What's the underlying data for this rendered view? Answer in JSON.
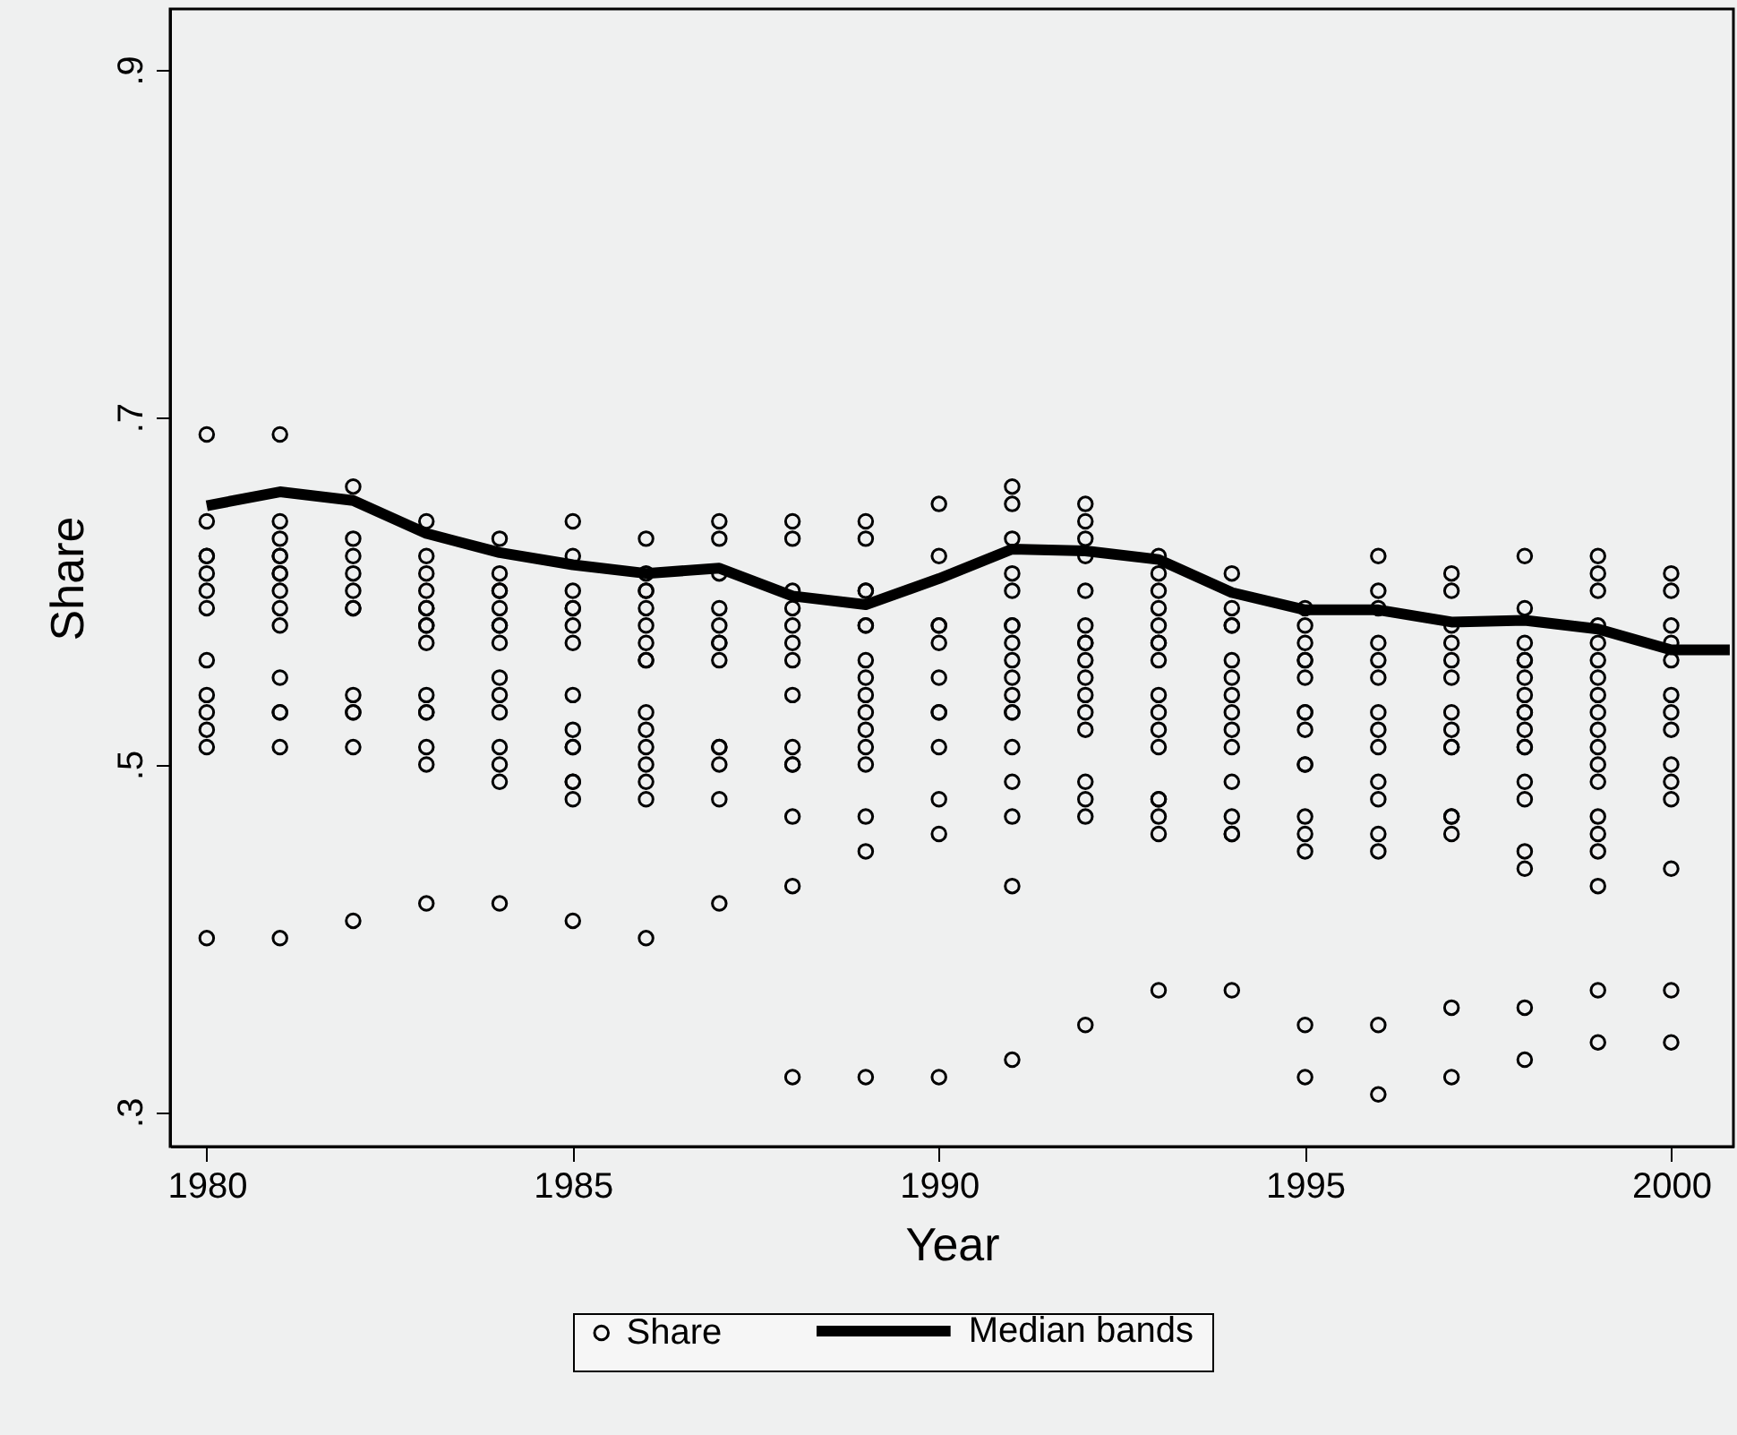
{
  "chart_data": {
    "type": "scatter",
    "xlabel": "Year",
    "ylabel": "Share",
    "xlim": [
      1979.5,
      2000.85
    ],
    "ylim": [
      0.28,
      0.935
    ],
    "xticks": [
      1980,
      1985,
      1990,
      1995,
      2000
    ],
    "yticks": [
      {
        "value": 0.3,
        "label": ".3"
      },
      {
        "value": 0.5,
        "label": ".5"
      },
      {
        "value": 0.7,
        "label": ".7"
      },
      {
        "value": 0.9,
        "label": ".9"
      }
    ],
    "legend": "bottom",
    "series": [
      {
        "name": "Share",
        "marker": "circle",
        "color": "#000000",
        "x": [
          1980,
          1980,
          1980,
          1980,
          1980,
          1980,
          1980,
          1980,
          1980,
          1980,
          1980,
          1980,
          1980,
          1981,
          1981,
          1981,
          1981,
          1981,
          1981,
          1981,
          1981,
          1981,
          1981,
          1981,
          1981,
          1981,
          1981,
          1981,
          1982,
          1982,
          1982,
          1982,
          1982,
          1982,
          1982,
          1982,
          1982,
          1982,
          1982,
          1982,
          1983,
          1983,
          1983,
          1983,
          1983,
          1983,
          1983,
          1983,
          1983,
          1983,
          1983,
          1983,
          1983,
          1983,
          1983,
          1984,
          1984,
          1984,
          1984,
          1984,
          1984,
          1984,
          1984,
          1984,
          1984,
          1984,
          1984,
          1984,
          1984,
          1984,
          1985,
          1985,
          1985,
          1985,
          1985,
          1985,
          1985,
          1985,
          1985,
          1985,
          1985,
          1985,
          1985,
          1985,
          1985,
          1986,
          1986,
          1986,
          1986,
          1986,
          1986,
          1986,
          1986,
          1986,
          1986,
          1986,
          1986,
          1986,
          1986,
          1986,
          1986,
          1987,
          1987,
          1987,
          1987,
          1987,
          1987,
          1987,
          1987,
          1987,
          1987,
          1987,
          1987,
          1987,
          1988,
          1988,
          1988,
          1988,
          1988,
          1988,
          1988,
          1988,
          1988,
          1988,
          1988,
          1988,
          1988,
          1988,
          1989,
          1989,
          1989,
          1989,
          1989,
          1989,
          1989,
          1989,
          1989,
          1989,
          1989,
          1989,
          1989,
          1989,
          1989,
          1989,
          1990,
          1990,
          1990,
          1990,
          1990,
          1990,
          1990,
          1990,
          1990,
          1990,
          1990,
          1990,
          1991,
          1991,
          1991,
          1991,
          1991,
          1991,
          1991,
          1991,
          1991,
          1991,
          1991,
          1991,
          1991,
          1991,
          1991,
          1991,
          1991,
          1991,
          1992,
          1992,
          1992,
          1992,
          1992,
          1992,
          1992,
          1992,
          1992,
          1992,
          1992,
          1992,
          1992,
          1992,
          1992,
          1992,
          1992,
          1993,
          1993,
          1993,
          1993,
          1993,
          1993,
          1993,
          1993,
          1993,
          1993,
          1993,
          1993,
          1993,
          1993,
          1993,
          1993,
          1993,
          1994,
          1994,
          1994,
          1994,
          1994,
          1994,
          1994,
          1994,
          1994,
          1994,
          1994,
          1994,
          1994,
          1994,
          1994,
          1995,
          1995,
          1995,
          1995,
          1995,
          1995,
          1995,
          1995,
          1995,
          1995,
          1995,
          1995,
          1995,
          1995,
          1995,
          1995,
          1996,
          1996,
          1996,
          1996,
          1996,
          1996,
          1996,
          1996,
          1996,
          1996,
          1996,
          1996,
          1996,
          1996,
          1996,
          1997,
          1997,
          1997,
          1997,
          1997,
          1997,
          1997,
          1997,
          1997,
          1997,
          1997,
          1997,
          1997,
          1997,
          1997,
          1998,
          1998,
          1998,
          1998,
          1998,
          1998,
          1998,
          1998,
          1998,
          1998,
          1998,
          1998,
          1998,
          1998,
          1998,
          1998,
          1998,
          1998,
          1999,
          1999,
          1999,
          1999,
          1999,
          1999,
          1999,
          1999,
          1999,
          1999,
          1999,
          1999,
          1999,
          1999,
          1999,
          1999,
          1999,
          1999,
          1999,
          2000,
          2000,
          2000,
          2000,
          2000,
          2000,
          2000,
          2000,
          2000,
          2000,
          2000,
          2000,
          2000,
          2000
        ],
        "values": [
          0.69,
          0.64,
          0.62,
          0.62,
          0.61,
          0.6,
          0.59,
          0.56,
          0.54,
          0.53,
          0.52,
          0.51,
          0.4,
          0.69,
          0.64,
          0.63,
          0.62,
          0.62,
          0.61,
          0.61,
          0.6,
          0.59,
          0.58,
          0.55,
          0.53,
          0.53,
          0.51,
          0.4,
          0.66,
          0.63,
          0.62,
          0.61,
          0.6,
          0.59,
          0.59,
          0.54,
          0.53,
          0.53,
          0.51,
          0.41,
          0.64,
          0.62,
          0.61,
          0.6,
          0.59,
          0.59,
          0.58,
          0.58,
          0.57,
          0.54,
          0.53,
          0.53,
          0.51,
          0.5,
          0.42,
          0.63,
          0.61,
          0.6,
          0.6,
          0.59,
          0.58,
          0.58,
          0.57,
          0.55,
          0.54,
          0.53,
          0.51,
          0.5,
          0.49,
          0.42,
          0.64,
          0.62,
          0.6,
          0.59,
          0.59,
          0.58,
          0.57,
          0.54,
          0.52,
          0.51,
          0.51,
          0.49,
          0.49,
          0.48,
          0.41,
          0.63,
          0.61,
          0.6,
          0.6,
          0.59,
          0.58,
          0.57,
          0.56,
          0.56,
          0.53,
          0.52,
          0.51,
          0.5,
          0.49,
          0.48,
          0.4,
          0.64,
          0.63,
          0.61,
          0.59,
          0.58,
          0.57,
          0.57,
          0.56,
          0.51,
          0.51,
          0.5,
          0.48,
          0.42,
          0.64,
          0.63,
          0.6,
          0.59,
          0.58,
          0.57,
          0.56,
          0.54,
          0.51,
          0.5,
          0.5,
          0.47,
          0.43,
          0.32,
          0.64,
          0.63,
          0.6,
          0.6,
          0.58,
          0.58,
          0.56,
          0.55,
          0.54,
          0.53,
          0.52,
          0.51,
          0.5,
          0.47,
          0.45,
          0.32,
          0.65,
          0.62,
          0.58,
          0.58,
          0.57,
          0.55,
          0.53,
          0.53,
          0.51,
          0.48,
          0.46,
          0.32,
          0.66,
          0.65,
          0.63,
          0.61,
          0.6,
          0.58,
          0.58,
          0.57,
          0.56,
          0.55,
          0.54,
          0.53,
          0.53,
          0.51,
          0.49,
          0.47,
          0.43,
          0.33,
          0.65,
          0.64,
          0.63,
          0.62,
          0.6,
          0.58,
          0.57,
          0.57,
          0.56,
          0.55,
          0.54,
          0.53,
          0.52,
          0.49,
          0.48,
          0.47,
          0.35,
          0.62,
          0.61,
          0.6,
          0.59,
          0.58,
          0.57,
          0.57,
          0.56,
          0.54,
          0.53,
          0.52,
          0.51,
          0.48,
          0.48,
          0.47,
          0.46,
          0.37,
          0.61,
          0.59,
          0.58,
          0.58,
          0.56,
          0.55,
          0.54,
          0.53,
          0.52,
          0.51,
          0.49,
          0.47,
          0.46,
          0.46,
          0.37,
          0.59,
          0.58,
          0.57,
          0.56,
          0.56,
          0.55,
          0.53,
          0.53,
          0.52,
          0.5,
          0.5,
          0.47,
          0.46,
          0.45,
          0.35,
          0.32,
          0.62,
          0.6,
          0.59,
          0.57,
          0.56,
          0.55,
          0.53,
          0.52,
          0.51,
          0.49,
          0.48,
          0.46,
          0.45,
          0.35,
          0.31,
          0.61,
          0.6,
          0.58,
          0.57,
          0.56,
          0.55,
          0.53,
          0.52,
          0.51,
          0.51,
          0.47,
          0.47,
          0.46,
          0.36,
          0.32,
          0.62,
          0.59,
          0.57,
          0.56,
          0.56,
          0.55,
          0.54,
          0.53,
          0.53,
          0.52,
          0.51,
          0.51,
          0.49,
          0.48,
          0.45,
          0.44,
          0.36,
          0.33,
          0.62,
          0.61,
          0.6,
          0.58,
          0.57,
          0.56,
          0.55,
          0.54,
          0.53,
          0.52,
          0.51,
          0.5,
          0.49,
          0.47,
          0.46,
          0.45,
          0.43,
          0.37,
          0.34,
          0.61,
          0.6,
          0.58,
          0.57,
          0.56,
          0.54,
          0.53,
          0.52,
          0.5,
          0.49,
          0.48,
          0.44,
          0.37,
          0.34
        ]
      },
      {
        "name": "Median bands",
        "type": "line",
        "color": "#000000",
        "x": [
          1980,
          1981,
          1982,
          1983,
          1984,
          1985,
          1986,
          1987,
          1988,
          1989,
          1990,
          1991,
          1992,
          1993,
          1994,
          1995,
          1996,
          1997,
          1998,
          1999,
          2000,
          2000.8
        ],
        "values": [
          0.649,
          0.657,
          0.652,
          0.633,
          0.622,
          0.615,
          0.61,
          0.613,
          0.597,
          0.592,
          0.607,
          0.624,
          0.623,
          0.618,
          0.599,
          0.589,
          0.589,
          0.582,
          0.583,
          0.578,
          0.566,
          0.566
        ]
      }
    ]
  }
}
